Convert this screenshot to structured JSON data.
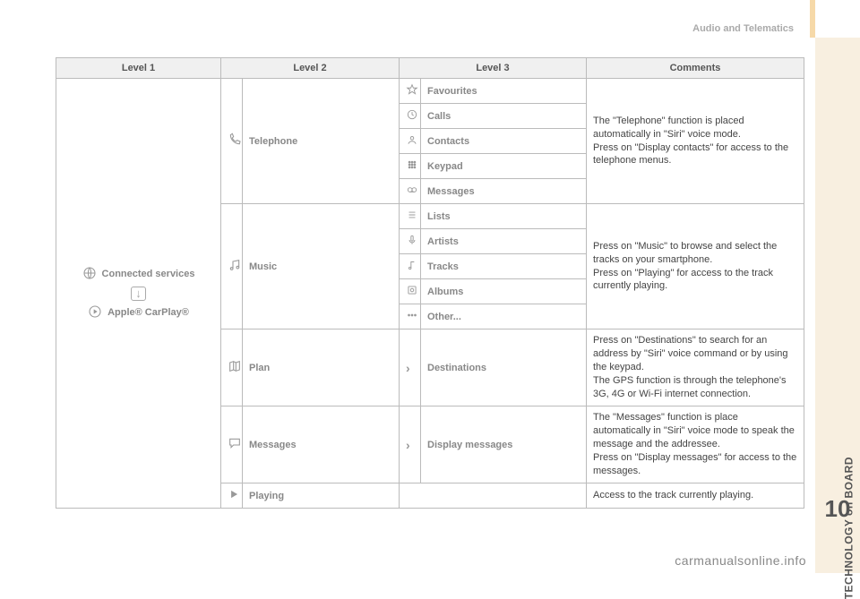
{
  "header": {
    "breadcrumb": "Audio and Telematics"
  },
  "sidebar_tab": {
    "label": "TECHNOLOGY on BOARD",
    "num": "10"
  },
  "watermark": "carmanualsonline.info",
  "table": {
    "headers": {
      "l1": "Level 1",
      "l2": "Level 2",
      "l3": "Level 3",
      "c": "Comments"
    },
    "level1": {
      "line1": "Connected services",
      "line2": "Apple® CarPlay®"
    },
    "sections": [
      {
        "l2": "Telephone",
        "l3": [
          {
            "label": "Favourites"
          },
          {
            "label": "Calls"
          },
          {
            "label": "Contacts"
          },
          {
            "label": "Keypad"
          },
          {
            "label": "Messages"
          }
        ],
        "comment": "The \"Telephone\" function is placed automatically in \"Siri\" voice mode.\nPress on \"Display contacts\" for access to the telephone menus."
      },
      {
        "l2": "Music",
        "l3": [
          {
            "label": "Lists"
          },
          {
            "label": "Artists"
          },
          {
            "label": "Tracks"
          },
          {
            "label": "Albums"
          },
          {
            "label": "Other..."
          }
        ],
        "comment": "Press on \"Music\" to browse and select the tracks on your smartphone.\nPress on \"Playing\" for access to the track currently playing."
      },
      {
        "l2": "Plan",
        "l3": [
          {
            "label": "Destinations"
          }
        ],
        "comment": "Press on \"Destinations\" to search for an address by \"Siri\" voice command or by using the keypad.\nThe GPS function is through the telephone's 3G, 4G or Wi-Fi internet connection."
      },
      {
        "l2": "Messages",
        "l3": [
          {
            "label": "Display messages"
          }
        ],
        "comment": "The \"Messages\" function is place automatically in \"Siri\" voice mode to speak the message and the addressee.\nPress on \"Display messages\" for access to the messages."
      },
      {
        "l2": "Playing",
        "l3": [],
        "comment": "Access to the track currently playing."
      }
    ]
  },
  "colors": {
    "border": "#bbbbbb",
    "header_bg": "#f0f0f0",
    "tab_bg": "#f8efe0",
    "accent": "#f6d9a8",
    "muted": "#888888"
  }
}
